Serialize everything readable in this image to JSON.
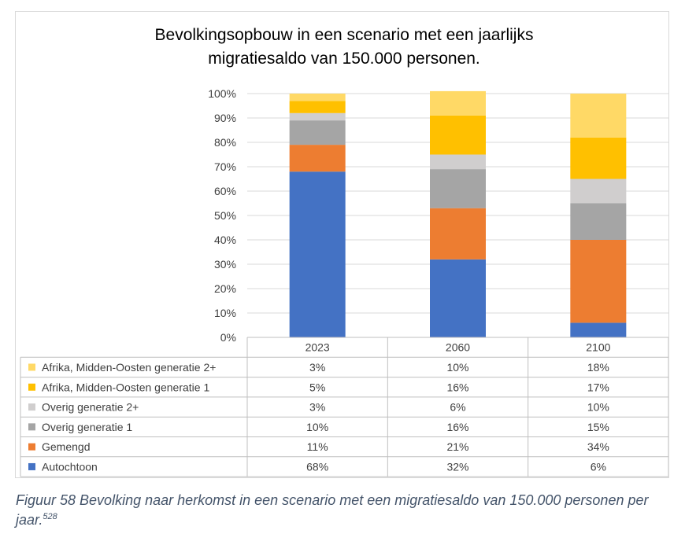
{
  "chart_data": {
    "type": "bar",
    "stacked": true,
    "percent_stacked": true,
    "title_line1": "Bevolkingsopbouw in een scenario met een jaarlijks",
    "title_line2": "migratiesaldo van 150.000 personen.",
    "categories": [
      "2023",
      "2060",
      "2100"
    ],
    "ylim": [
      0,
      100
    ],
    "y_ticks": [
      "0%",
      "10%",
      "20%",
      "30%",
      "40%",
      "50%",
      "60%",
      "70%",
      "80%",
      "90%",
      "100%"
    ],
    "gridlines": true,
    "legend_placement": "data-table-left",
    "series": [
      {
        "name": "Autochtoon",
        "color": "#4472c4",
        "values": [
          68,
          32,
          6
        ],
        "labels": [
          "68%",
          "32%",
          "6%"
        ]
      },
      {
        "name": "Gemengd",
        "color": "#ed7d31",
        "values": [
          11,
          21,
          34
        ],
        "labels": [
          "11%",
          "21%",
          "34%"
        ]
      },
      {
        "name": "Overig generatie 1",
        "color": "#a5a5a5",
        "values": [
          10,
          16,
          15
        ],
        "labels": [
          "10%",
          "16%",
          "15%"
        ]
      },
      {
        "name": "Overig generatie 2+",
        "color": "#d0cece",
        "values": [
          3,
          6,
          10
        ],
        "labels": [
          "3%",
          "6%",
          "10%"
        ]
      },
      {
        "name": "Afrika, Midden-Oosten generatie 1",
        "color": "#ffc000",
        "values": [
          5,
          16,
          17
        ],
        "labels": [
          "5%",
          "16%",
          "17%"
        ]
      },
      {
        "name": "Afrika, Midden-Oosten generatie 2+",
        "color": "#ffd966",
        "values": [
          3,
          10,
          18
        ],
        "labels": [
          "3%",
          "10%",
          "18%"
        ]
      }
    ]
  },
  "caption": {
    "text": "Figuur 58 Bevolking naar herkomst in een scenario met een migratiesaldo van 150.000 personen per jaar.",
    "footnote": "528"
  }
}
